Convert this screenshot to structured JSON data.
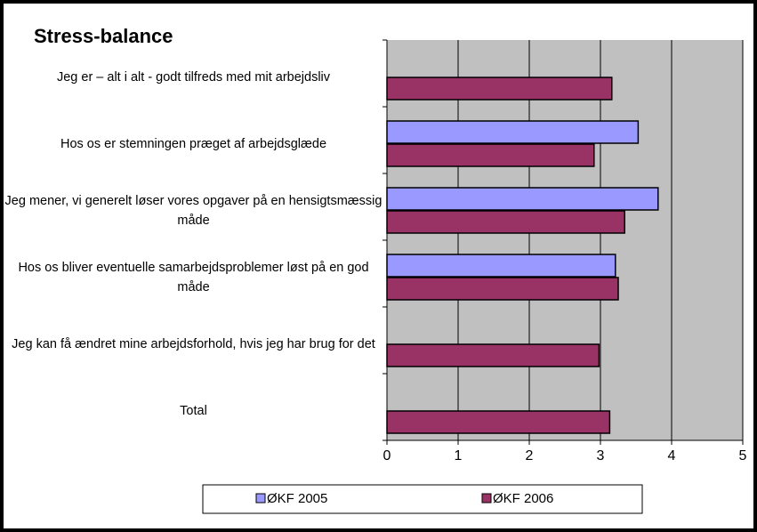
{
  "chart_data": {
    "type": "hbar",
    "title": "Stress-balance",
    "categories": [
      "Jeg er – alt i alt - godt tilfreds med mit arbejdsliv",
      "Hos os er stemningen præget af arbejdsglæde",
      "Jeg mener, vi generelt løser vores opgaver på en hensigtsmæssig måde",
      "Hos os bliver eventuelle samarbejdsproblemer løst på en god måde",
      "Jeg kan få ændret mine arbejdsforhold, hvis jeg har brug for det",
      "Total"
    ],
    "series": [
      {
        "name": "ØKF 2005",
        "color": "#9999ff",
        "values": [
          null,
          3.53,
          3.81,
          3.21,
          null,
          null
        ]
      },
      {
        "name": "ØKF 2006",
        "color": "#993366",
        "values": [
          3.16,
          2.91,
          3.34,
          3.25,
          2.98,
          3.13
        ]
      }
    ],
    "xlim": [
      0,
      5
    ],
    "xticks": [
      0,
      1,
      2,
      3,
      4,
      5
    ],
    "grid": true,
    "legend": "bottom",
    "background": "#c0c0c0"
  }
}
